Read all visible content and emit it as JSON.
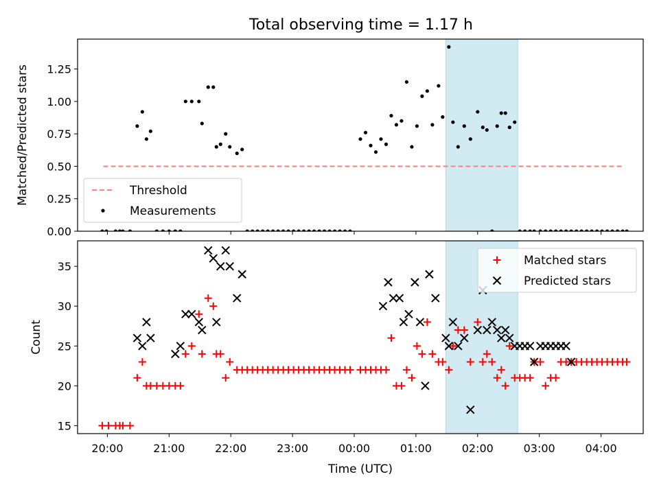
{
  "chart_data": [
    {
      "type": "scatter",
      "title": "Total observing time = 1.17 h",
      "ylabel": "Matched/Predicted stars",
      "xlim": [
        "19:31",
        "04:41"
      ],
      "ylim": [
        0,
        1.48
      ],
      "yticks": [
        "0.00",
        "0.25",
        "0.50",
        "0.75",
        "1.00",
        "1.25"
      ],
      "highlight": {
        "x": [
          "01:29",
          "02:39"
        ],
        "color": "#add8e6"
      },
      "legend": {
        "position": "lower-left",
        "entries": [
          "Threshold",
          "Measurements"
        ]
      },
      "threshold": {
        "name": "Threshold",
        "x": [
          "19:56",
          "04:22"
        ],
        "y": 0.5,
        "color": "#ff7f7f",
        "style": "dashed"
      },
      "series": [
        {
          "name": "Measurements",
          "color": "#000000",
          "marker": "dot",
          "x": [
            "19:55",
            "19:59",
            "20:08",
            "20:12",
            "20:15",
            "20:22",
            "20:29",
            "20:34",
            "20:38",
            "20:42",
            "20:48",
            "20:54",
            "21:00",
            "21:06",
            "21:11",
            "21:16",
            "21:22",
            "21:29",
            "21:32",
            "21:38",
            "21:43",
            "21:46",
            "21:50",
            "21:55",
            "21:59",
            "22:06",
            "22:11",
            "22:16",
            "22:21",
            "22:26",
            "22:31",
            "22:36",
            "22:41",
            "22:46",
            "22:51",
            "22:56",
            "23:01",
            "23:06",
            "23:11",
            "23:16",
            "23:21",
            "23:26",
            "23:31",
            "23:36",
            "23:41",
            "23:46",
            "23:51",
            "23:56",
            "00:06",
            "00:11",
            "00:16",
            "00:21",
            "00:26",
            "00:31",
            "00:36",
            "00:41",
            "00:46",
            "00:51",
            "00:56",
            "01:01",
            "01:06",
            "01:11",
            "01:16",
            "01:22",
            "01:26",
            "01:32",
            "01:36",
            "01:41",
            "01:47",
            "01:53",
            "02:00",
            "02:05",
            "02:09",
            "02:14",
            "02:19",
            "02:23",
            "02:27",
            "02:31",
            "02:36",
            "02:41",
            "02:46",
            "02:51",
            "02:55",
            "03:01",
            "03:06",
            "03:11",
            "03:16",
            "03:21",
            "03:26",
            "03:31",
            "03:36",
            "03:41",
            "03:46",
            "03:51",
            "03:56",
            "04:01",
            "04:06",
            "04:11",
            "04:16",
            "04:21",
            "04:25"
          ],
          "y": [
            0,
            0,
            0,
            0,
            0,
            0,
            0.81,
            0.92,
            0.71,
            0.77,
            0,
            0,
            0,
            0,
            0,
            1.0,
            1.0,
            1.0,
            0.83,
            1.11,
            1.11,
            0.65,
            0.67,
            0.75,
            0.65,
            0.6,
            0.63,
            0,
            0,
            0,
            0,
            0,
            0,
            0,
            0,
            0,
            0,
            0,
            0,
            0,
            0,
            0,
            0,
            0,
            0,
            0,
            0,
            0,
            0.71,
            0.76,
            0.66,
            0.61,
            0.71,
            0.67,
            0.89,
            0.82,
            0.85,
            1.15,
            0.65,
            0.81,
            1.04,
            1.08,
            0.82,
            1.12,
            0.88,
            1.42,
            0.84,
            0.65,
            0.81,
            0.71,
            0.92,
            0.8,
            0.78,
            0,
            0.81,
            0.91,
            0.91,
            0.8,
            0.84,
            0,
            0,
            0,
            0,
            0,
            0,
            0,
            0,
            0,
            0,
            0,
            0,
            0,
            0,
            0,
            0,
            0,
            0,
            0,
            0,
            0,
            0
          ]
        }
      ]
    },
    {
      "type": "scatter",
      "xlabel": "Time (UTC)",
      "ylabel": "Count",
      "xlim": [
        "19:31",
        "04:41"
      ],
      "ylim": [
        14,
        38.2
      ],
      "xticks": [
        "20:00",
        "21:00",
        "22:00",
        "23:00",
        "00:00",
        "01:00",
        "02:00",
        "03:00",
        "04:00"
      ],
      "yticks": [
        "15",
        "20",
        "25",
        "30",
        "35"
      ],
      "highlight": {
        "x": [
          "01:29",
          "02:39"
        ],
        "color": "#add8e6"
      },
      "legend": {
        "position": "upper-right",
        "entries": [
          "Matched stars",
          "Predicted stars"
        ]
      },
      "series": [
        {
          "name": "Matched stars",
          "color": "#ff0000",
          "marker": "plus",
          "x": [
            "19:55",
            "20:01",
            "20:08",
            "20:12",
            "20:15",
            "20:22",
            "20:29",
            "20:34",
            "20:38",
            "20:42",
            "20:48",
            "20:54",
            "21:00",
            "21:06",
            "21:11",
            "21:16",
            "21:22",
            "21:29",
            "21:32",
            "21:38",
            "21:43",
            "21:46",
            "21:50",
            "21:55",
            "21:59",
            "22:06",
            "22:11",
            "22:16",
            "22:21",
            "22:26",
            "22:31",
            "22:36",
            "22:41",
            "22:46",
            "22:51",
            "22:56",
            "23:01",
            "23:06",
            "23:11",
            "23:16",
            "23:21",
            "23:26",
            "23:31",
            "23:36",
            "23:41",
            "23:46",
            "23:51",
            "23:56",
            "00:06",
            "00:11",
            "00:16",
            "00:21",
            "00:26",
            "00:31",
            "00:36",
            "00:41",
            "00:46",
            "00:51",
            "00:56",
            "01:01",
            "01:06",
            "01:11",
            "01:16",
            "01:22",
            "01:26",
            "01:32",
            "01:36",
            "01:41",
            "01:47",
            "01:53",
            "02:00",
            "02:05",
            "02:09",
            "02:14",
            "02:19",
            "02:23",
            "02:27",
            "02:31",
            "02:36",
            "02:41",
            "02:46",
            "02:51",
            "02:55",
            "03:01",
            "03:06",
            "03:11",
            "03:16",
            "03:21",
            "03:26",
            "03:31",
            "03:36",
            "03:41",
            "03:46",
            "03:51",
            "03:56",
            "04:01",
            "04:06",
            "04:11",
            "04:16",
            "04:21",
            "04:25"
          ],
          "y": [
            15,
            15,
            15,
            15,
            15,
            15,
            21,
            23,
            20,
            20,
            20,
            20,
            20,
            20,
            20,
            24,
            25,
            29,
            24,
            31,
            30,
            24,
            24,
            21,
            23,
            22,
            22,
            22,
            22,
            22,
            22,
            22,
            22,
            22,
            22,
            22,
            22,
            22,
            22,
            22,
            22,
            22,
            22,
            22,
            22,
            22,
            22,
            22,
            22,
            22,
            22,
            22,
            22,
            22,
            26,
            20,
            20,
            22,
            21,
            25,
            24,
            28,
            24,
            23,
            23,
            22,
            25,
            27,
            27,
            23,
            28,
            23,
            24,
            23,
            21,
            22,
            20,
            25,
            21,
            21,
            21,
            21,
            23,
            23,
            20,
            21,
            21,
            23,
            23,
            23,
            23,
            23,
            23,
            23,
            23,
            23,
            23,
            23,
            23,
            23,
            23
          ]
        },
        {
          "name": "Predicted stars",
          "color": "#000000",
          "marker": "x",
          "x": [
            "20:29",
            "20:34",
            "20:38",
            "20:42",
            "21:06",
            "21:11",
            "21:16",
            "21:22",
            "21:29",
            "21:32",
            "21:38",
            "21:43",
            "21:46",
            "21:50",
            "21:55",
            "21:59",
            "22:06",
            "22:11",
            "00:28",
            "00:33",
            "00:38",
            "00:44",
            "00:48",
            "00:53",
            "00:59",
            "01:04",
            "01:09",
            "01:13",
            "01:19",
            "01:29",
            "01:32",
            "01:36",
            "01:41",
            "01:47",
            "01:53",
            "02:00",
            "02:05",
            "02:09",
            "02:14",
            "02:19",
            "02:23",
            "02:27",
            "02:31",
            "02:36",
            "02:41",
            "02:46",
            "02:51",
            "02:55",
            "03:01",
            "03:06",
            "03:11",
            "03:16",
            "03:21",
            "03:26",
            "03:31"
          ],
          "y": [
            26,
            25,
            28,
            26,
            24,
            25,
            29,
            29,
            28,
            27,
            37,
            36,
            28,
            35,
            37,
            35,
            31,
            34,
            30,
            33,
            31,
            31,
            28,
            29,
            33,
            28,
            20,
            34,
            31,
            26,
            25,
            28,
            25,
            26,
            17,
            27,
            32,
            27,
            28,
            27,
            26,
            27,
            26,
            25,
            25,
            25,
            25,
            23,
            25,
            25,
            25,
            25,
            25,
            25,
            23
          ]
        }
      ]
    }
  ]
}
